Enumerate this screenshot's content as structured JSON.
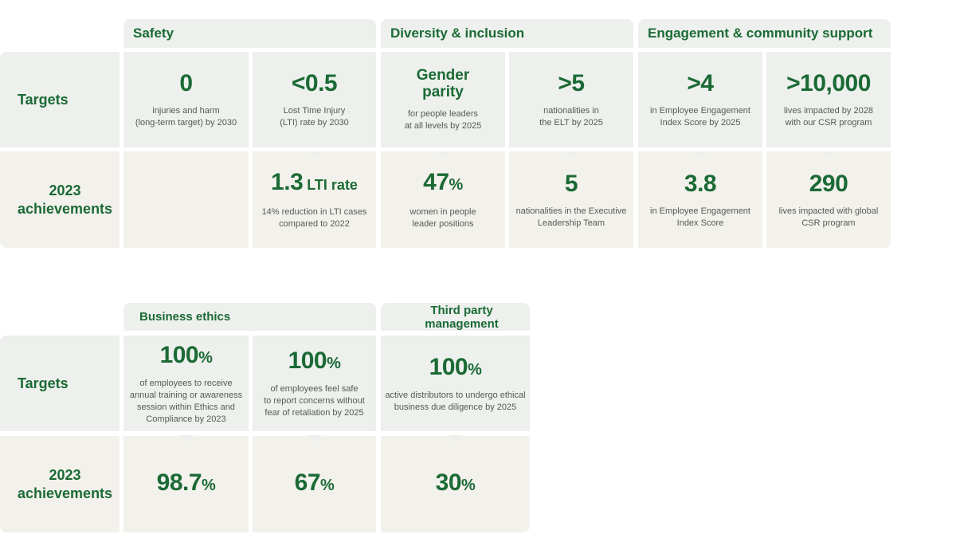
{
  "table1": {
    "headers": {
      "safety": "Safety",
      "diversity": "Diversity & inclusion",
      "engagement": "Engagement & community support"
    },
    "row_labels": {
      "targets": "Targets",
      "achievements": "2023\nachievements"
    },
    "targets": [
      {
        "value": "0",
        "desc": "injuries and harm\n(long-term target) by 2030"
      },
      {
        "value": "<0.5",
        "desc": "Lost Time Injury\n(LTI) rate by 2030"
      },
      {
        "value": "Gender\nparity",
        "desc": "for people leaders\nat all levels by 2025"
      },
      {
        "value": ">5",
        "desc": "nationalities in\nthe ELT by 2025"
      },
      {
        "value": ">4",
        "desc": "in Employee Engagement\nIndex Score by 2025"
      },
      {
        "value": ">10,000",
        "desc": "lives impacted by 2028\nwith our CSR program"
      }
    ],
    "achievements": [
      {
        "value": "1.3",
        "unit": " LTI rate",
        "desc": "14% reduction in LTI cases\ncompared to 2022"
      },
      {
        "value": "47",
        "unit": "%",
        "desc": "women in people\nleader positions"
      },
      {
        "value": "5",
        "unit": "",
        "desc": "nationalities in the Executive\nLeadership Team"
      },
      {
        "value": "3.8",
        "unit": "",
        "desc": "in Employee Engagement\nIndex Score"
      },
      {
        "value": "290",
        "unit": "",
        "desc": "lives impacted with global\nCSR program"
      }
    ]
  },
  "table2": {
    "headers": {
      "ethics": "Business ethics",
      "third_party": "Third party management"
    },
    "row_labels": {
      "targets": "Targets",
      "achievements": "2023\nachievements"
    },
    "targets": [
      {
        "value": "100",
        "unit": "%",
        "desc": "of employees to receive\nannual training or awareness\nsession within Ethics and\nCompliance by 2023"
      },
      {
        "value": "100",
        "unit": "%",
        "desc": "of employees feel safe\nto report concerns without\nfear of retaliation by 2025"
      },
      {
        "value": "100",
        "unit": "%",
        "desc": "active distributors to undergo ethical\nbusiness due diligence by 2025"
      }
    ],
    "achievements": [
      {
        "value": "98.7",
        "unit": "%"
      },
      {
        "value": "67",
        "unit": "%"
      },
      {
        "value": "30",
        "unit": "%"
      }
    ]
  },
  "colors": {
    "green_text": "#1b6a35",
    "targets_bg": "#edf0ed",
    "achievements_bg": "#f3f1ec"
  }
}
